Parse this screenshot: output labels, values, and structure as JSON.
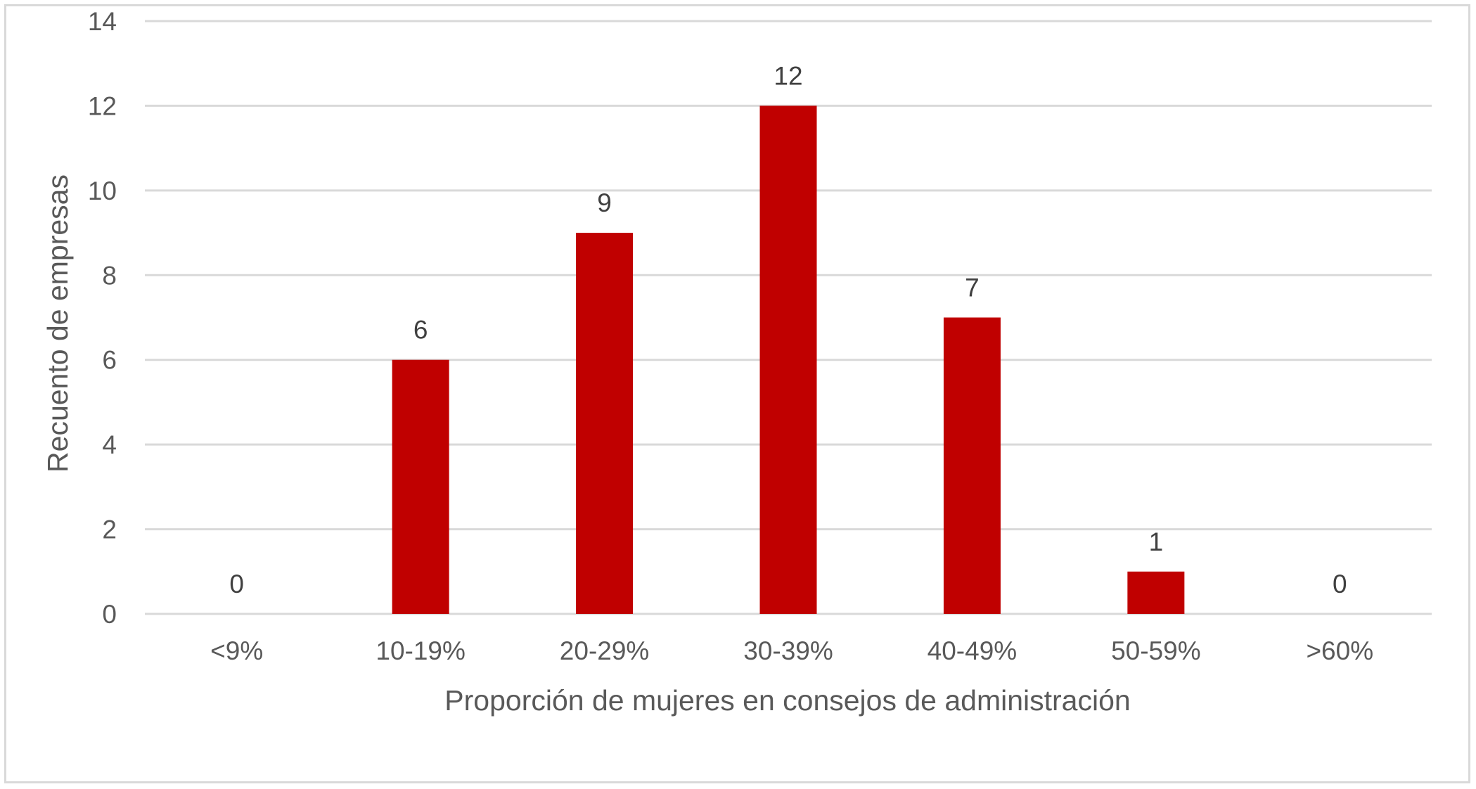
{
  "chart_data": {
    "type": "bar",
    "title": "",
    "xlabel": "Proporción de mujeres en consejos de administración",
    "ylabel": "Recuento de empresas",
    "categories": [
      "<9%",
      "10-19%",
      "20-29%",
      "30-39%",
      "40-49%",
      "50-59%",
      ">60%"
    ],
    "values": [
      0,
      6,
      9,
      12,
      7,
      1,
      0
    ],
    "data_labels": [
      "0",
      "6",
      "9",
      "12",
      "7",
      "1",
      "0"
    ],
    "ylim": [
      0,
      14
    ],
    "yticks": [
      0,
      2,
      4,
      6,
      8,
      10,
      12,
      14
    ],
    "ytick_labels": [
      "0",
      "2",
      "4",
      "6",
      "8",
      "10",
      "12",
      "14"
    ],
    "grid": true,
    "legend": "none",
    "bar_color": "#c00000"
  }
}
